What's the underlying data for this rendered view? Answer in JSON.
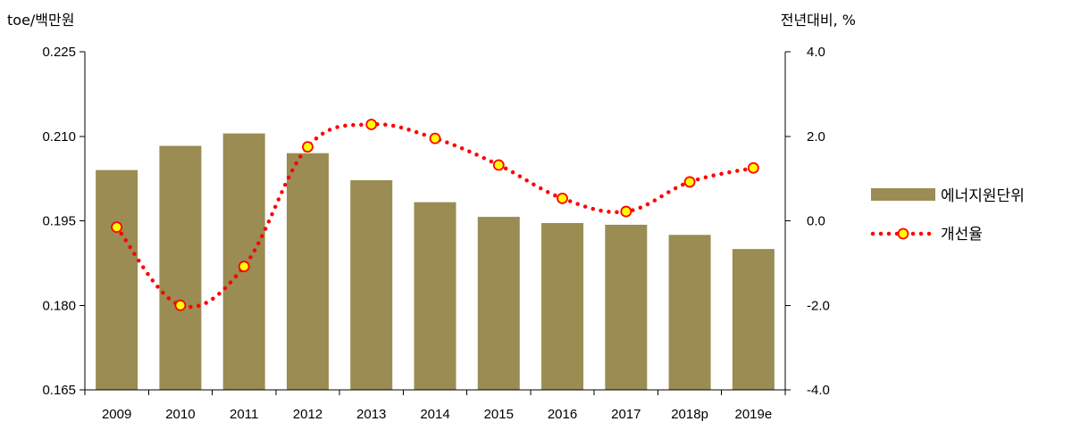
{
  "chart_data": {
    "type": "bar",
    "categories": [
      "2009",
      "2010",
      "2011",
      "2012",
      "2013",
      "2014",
      "2015",
      "2016",
      "2017",
      "2018p",
      "2019e"
    ],
    "left_axis": {
      "unit_label": "toe/백만원",
      "ylim": [
        0.165,
        0.225
      ],
      "ticks": [
        "0.225",
        "0.210",
        "0.195",
        "0.180",
        "0.165"
      ],
      "tick_values": [
        0.225,
        0.21,
        0.195,
        0.18,
        0.165
      ]
    },
    "right_axis": {
      "unit_label": "전년대비, %",
      "ylim": [
        -4.0,
        4.0
      ],
      "ticks": [
        "4.0",
        "2.0",
        "0.0",
        "-2.0",
        "-4.0"
      ],
      "tick_values": [
        4.0,
        2.0,
        0.0,
        -2.0,
        -4.0
      ]
    },
    "series": [
      {
        "name": "에너지원단위",
        "type": "bar",
        "axis": "left",
        "color": "#9a8c52",
        "values": [
          0.204,
          0.2083,
          0.2105,
          0.207,
          0.2022,
          0.1983,
          0.1957,
          0.1946,
          0.1943,
          0.1925,
          0.19
        ]
      },
      {
        "name": "개선율",
        "type": "line",
        "axis": "right",
        "line_color": "#ff0000",
        "line_style": "dotted",
        "marker_fill": "#ffff00",
        "marker_edge": "#ff0000",
        "values": [
          -0.15,
          -2.0,
          -1.08,
          1.75,
          2.28,
          1.95,
          1.32,
          0.53,
          0.22,
          0.92,
          1.25
        ]
      }
    ],
    "legend": "right",
    "grid": false
  }
}
